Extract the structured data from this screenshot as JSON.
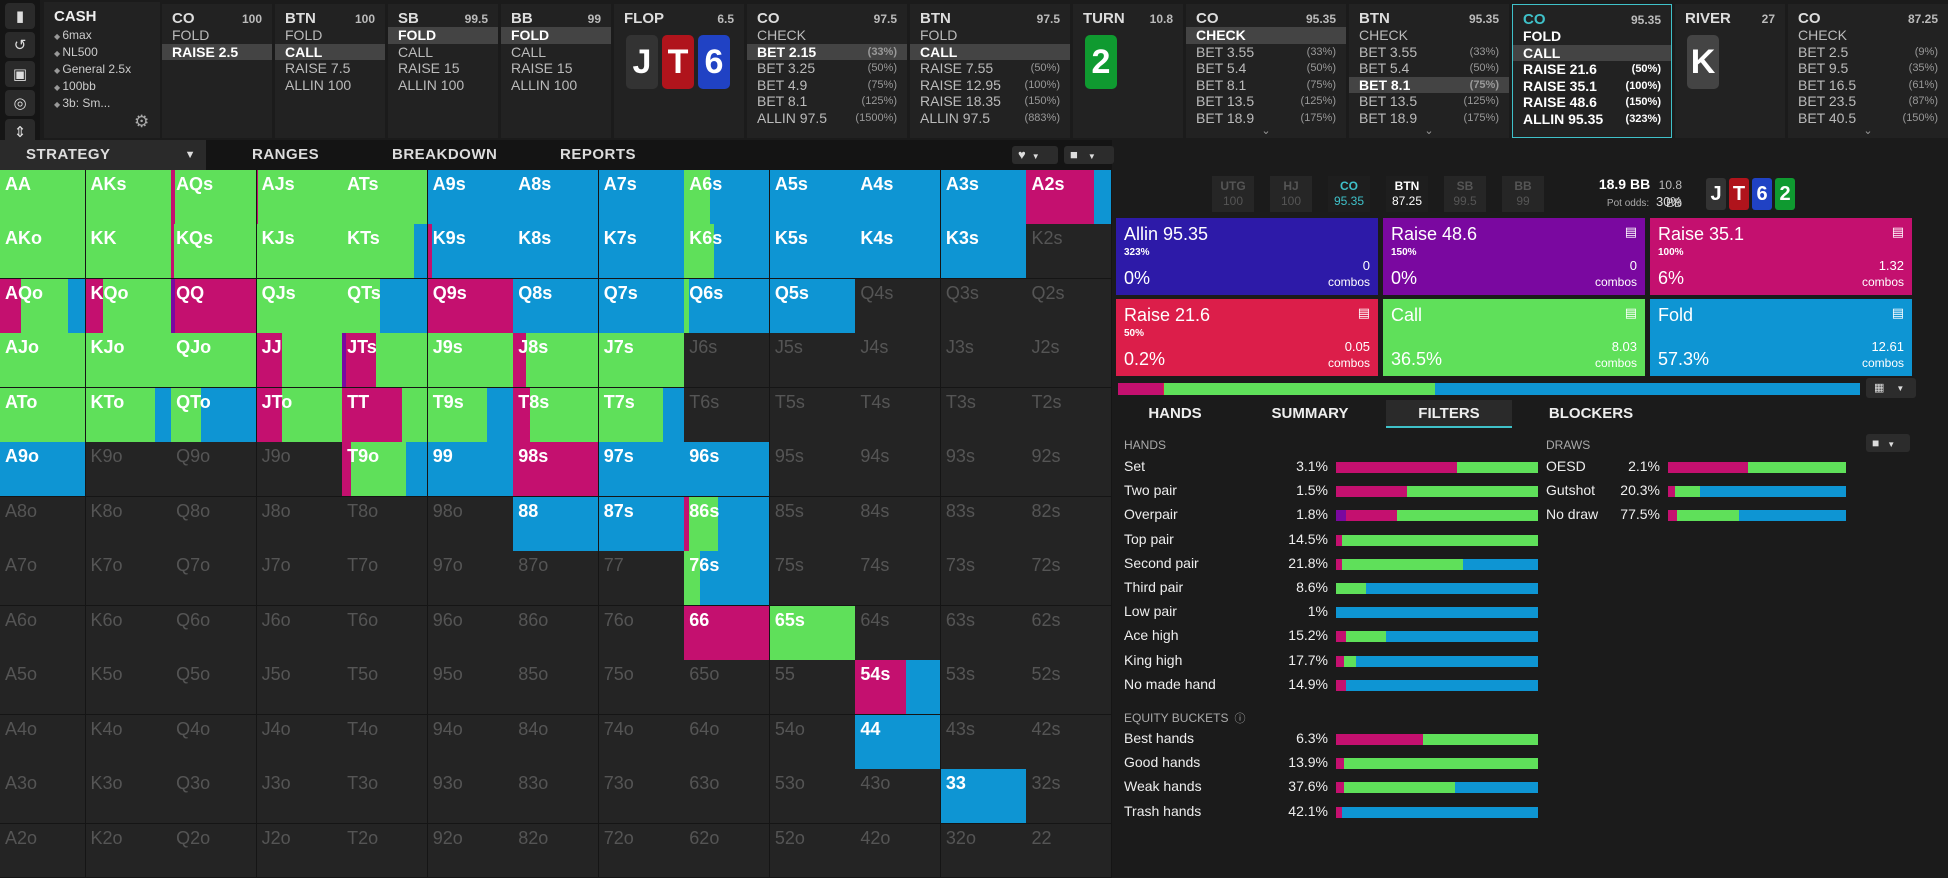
{
  "colors": {
    "fold": "#0e95d3",
    "call": "#5fe05a",
    "raise_small": "#dc1e4a",
    "raise_mid": "#c4106f",
    "raise_big": "#7a08a0",
    "allin": "#2d1aa8",
    "empty": "#242424",
    "accent": "#3fc1c9"
  },
  "sidebar": {
    "icons": [
      "bookmark-icon",
      "undo-icon",
      "save-icon",
      "gamepad-icon",
      "collapse-icon"
    ]
  },
  "cash": {
    "title": "CASH",
    "lines": [
      "6max",
      "NL500",
      "General 2.5x",
      "100bb",
      "3b: Sm..."
    ]
  },
  "nodes": [
    {
      "pos": "CO",
      "stack": "100",
      "actions": [
        {
          "l": "FOLD",
          "p": ""
        },
        {
          "l": "RAISE 2.5",
          "p": "",
          "sel": true
        }
      ]
    },
    {
      "pos": "BTN",
      "stack": "100",
      "actions": [
        {
          "l": "FOLD",
          "p": ""
        },
        {
          "l": "CALL",
          "p": "",
          "sel": true
        },
        {
          "l": "RAISE 7.5",
          "p": ""
        },
        {
          "l": "ALLIN 100",
          "p": ""
        }
      ]
    },
    {
      "pos": "SB",
      "stack": "99.5",
      "actions": [
        {
          "l": "FOLD",
          "p": "",
          "sel": true
        },
        {
          "l": "CALL",
          "p": ""
        },
        {
          "l": "RAISE 15",
          "p": ""
        },
        {
          "l": "ALLIN 100",
          "p": ""
        }
      ]
    },
    {
      "pos": "BB",
      "stack": "99",
      "actions": [
        {
          "l": "FOLD",
          "p": "",
          "sel": true
        },
        {
          "l": "CALL",
          "p": ""
        },
        {
          "l": "RAISE 15",
          "p": ""
        },
        {
          "l": "ALLIN 100",
          "p": ""
        }
      ]
    },
    {
      "street": "FLOP",
      "stack": "6.5",
      "cards": [
        {
          "r": "J",
          "c": "#333"
        },
        {
          "r": "T",
          "c": "#b0141c"
        },
        {
          "r": "6",
          "c": "#2042c4"
        }
      ]
    },
    {
      "pos": "CO",
      "stack": "97.5",
      "actions": [
        {
          "l": "CHECK",
          "p": ""
        },
        {
          "l": "BET 2.15",
          "p": "(33%)",
          "sel": true
        },
        {
          "l": "BET 3.25",
          "p": "(50%)"
        },
        {
          "l": "BET 4.9",
          "p": "(75%)"
        },
        {
          "l": "BET 8.1",
          "p": "(125%)"
        },
        {
          "l": "ALLIN 97.5",
          "p": "(1500%)"
        }
      ]
    },
    {
      "pos": "BTN",
      "stack": "97.5",
      "actions": [
        {
          "l": "FOLD",
          "p": ""
        },
        {
          "l": "CALL",
          "p": "",
          "sel": true
        },
        {
          "l": "RAISE 7.55",
          "p": "(50%)"
        },
        {
          "l": "RAISE 12.95",
          "p": "(100%)"
        },
        {
          "l": "RAISE 18.35",
          "p": "(150%)"
        },
        {
          "l": "ALLIN 97.5",
          "p": "(883%)"
        }
      ]
    },
    {
      "street": "TURN",
      "stack": "10.8",
      "cards": [
        {
          "r": "2",
          "c": "#0f9a30"
        }
      ]
    },
    {
      "pos": "CO",
      "stack": "95.35",
      "actions": [
        {
          "l": "CHECK",
          "p": "",
          "sel": true
        },
        {
          "l": "BET 3.55",
          "p": "(33%)"
        },
        {
          "l": "BET 5.4",
          "p": "(50%)"
        },
        {
          "l": "BET 8.1",
          "p": "(75%)"
        },
        {
          "l": "BET 13.5",
          "p": "(125%)"
        },
        {
          "l": "BET 18.9",
          "p": "(175%)"
        }
      ],
      "more": true
    },
    {
      "pos": "BTN",
      "stack": "95.35",
      "actions": [
        {
          "l": "CHECK",
          "p": ""
        },
        {
          "l": "BET 3.55",
          "p": "(33%)"
        },
        {
          "l": "BET 5.4",
          "p": "(50%)"
        },
        {
          "l": "BET 8.1",
          "p": "(75%)",
          "sel": true
        },
        {
          "l": "BET 13.5",
          "p": "(125%)"
        },
        {
          "l": "BET 18.9",
          "p": "(175%)"
        }
      ],
      "more": true
    },
    {
      "pos": "CO",
      "stack": "95.35",
      "active": true,
      "actions": [
        {
          "l": "FOLD",
          "p": ""
        },
        {
          "l": "CALL",
          "p": "",
          "sel": true
        },
        {
          "l": "RAISE 21.6",
          "p": "(50%)"
        },
        {
          "l": "RAISE 35.1",
          "p": "(100%)"
        },
        {
          "l": "RAISE 48.6",
          "p": "(150%)"
        },
        {
          "l": "ALLIN 95.35",
          "p": "(323%)"
        }
      ]
    },
    {
      "street": "RIVER",
      "stack": "27",
      "cards": [
        {
          "r": "K",
          "c": "#444"
        }
      ]
    },
    {
      "pos": "CO",
      "stack": "87.25",
      "actions": [
        {
          "l": "CHECK",
          "p": ""
        },
        {
          "l": "BET 2.5",
          "p": "(9%)"
        },
        {
          "l": "BET 9.5",
          "p": "(35%)"
        },
        {
          "l": "BET 16.5",
          "p": "(61%)"
        },
        {
          "l": "BET 23.5",
          "p": "(87%)"
        },
        {
          "l": "BET 40.5",
          "p": "(150%)"
        }
      ],
      "more": true
    }
  ],
  "tabs": [
    "STRATEGY",
    "RANGES",
    "BREAKDOWN",
    "REPORTS"
  ],
  "ranks": [
    "A",
    "K",
    "Q",
    "J",
    "T",
    "9",
    "8",
    "7",
    "6",
    "5",
    "4",
    "3",
    "2"
  ],
  "matrix": [
    [
      [
        0,
        0,
        0,
        100,
        0
      ],
      [
        0,
        0,
        0,
        100,
        0
      ],
      [
        0,
        0,
        5,
        95,
        0
      ],
      [
        0,
        0,
        2,
        98,
        0
      ],
      [
        0,
        0,
        0,
        100,
        0
      ],
      [
        0,
        0,
        0,
        0,
        100
      ],
      [
        0,
        0,
        0,
        0,
        100
      ],
      [
        0,
        0,
        0,
        0,
        100
      ],
      [
        0,
        0,
        0,
        30,
        70
      ],
      [
        0,
        0,
        0,
        0,
        100
      ],
      [
        0,
        0,
        0,
        0,
        100
      ],
      [
        0,
        0,
        0,
        0,
        100
      ],
      [
        0,
        0,
        80,
        0,
        20
      ]
    ],
    [
      [
        0,
        0,
        0,
        100,
        0
      ],
      [
        0,
        0,
        0,
        100,
        0
      ],
      [
        0,
        0,
        3,
        97,
        0
      ],
      [
        0,
        0,
        0,
        100,
        0
      ],
      [
        0,
        0,
        0,
        85,
        15
      ],
      [
        0,
        0,
        5,
        0,
        95
      ],
      [
        0,
        0,
        0,
        0,
        100
      ],
      [
        0,
        0,
        0,
        0,
        100
      ],
      [
        0,
        0,
        0,
        35,
        65
      ],
      [
        0,
        0,
        0,
        0,
        100
      ],
      [
        0,
        0,
        0,
        0,
        100
      ],
      [
        0,
        0,
        0,
        0,
        100
      ],
      null
    ],
    [
      [
        0,
        0,
        25,
        55,
        20
      ],
      [
        0,
        0,
        20,
        80,
        0
      ],
      [
        0,
        5,
        95,
        0,
        0
      ],
      [
        0,
        0,
        0,
        100,
        0
      ],
      [
        0,
        0,
        0,
        45,
        55
      ],
      [
        0,
        0,
        100,
        0,
        0
      ],
      [
        0,
        0,
        0,
        0,
        100
      ],
      [
        0,
        0,
        0,
        0,
        100
      ],
      [
        0,
        0,
        0,
        5,
        95
      ],
      [
        0,
        0,
        0,
        0,
        100
      ],
      null,
      null,
      null
    ],
    [
      [
        0,
        0,
        0,
        100,
        0
      ],
      [
        0,
        0,
        0,
        100,
        0
      ],
      [
        0,
        0,
        0,
        100,
        0
      ],
      [
        0,
        0,
        30,
        70,
        0
      ],
      [
        0,
        5,
        35,
        60,
        0
      ],
      [
        0,
        0,
        0,
        100,
        0
      ],
      [
        0,
        0,
        15,
        85,
        0
      ],
      [
        0,
        0,
        0,
        100,
        0
      ],
      null,
      null,
      null,
      null,
      null
    ],
    [
      [
        0,
        0,
        0,
        100,
        0
      ],
      [
        0,
        0,
        0,
        82,
        18
      ],
      [
        0,
        0,
        0,
        35,
        65
      ],
      [
        0,
        0,
        30,
        70,
        0
      ],
      [
        0,
        0,
        70,
        30,
        0
      ],
      [
        0,
        0,
        0,
        70,
        30
      ],
      [
        0,
        0,
        20,
        80,
        0
      ],
      [
        0,
        0,
        0,
        75,
        25
      ],
      null,
      null,
      null,
      null,
      null
    ],
    [
      [
        0,
        0,
        0,
        0,
        100
      ],
      null,
      null,
      null,
      [
        0,
        0,
        10,
        65,
        25
      ],
      [
        0,
        0,
        0,
        0,
        100
      ],
      [
        0,
        0,
        100,
        0,
        0
      ],
      [
        0,
        0,
        0,
        0,
        100
      ],
      [
        0,
        0,
        0,
        0,
        100
      ],
      null,
      null,
      null,
      null
    ],
    [
      null,
      null,
      null,
      null,
      null,
      null,
      [
        0,
        0,
        0,
        0,
        100
      ],
      [
        0,
        0,
        0,
        0,
        100
      ],
      [
        0,
        0,
        5,
        35,
        60
      ],
      null,
      null,
      null,
      null
    ],
    [
      null,
      null,
      null,
      null,
      null,
      null,
      null,
      null,
      [
        0,
        0,
        0,
        18,
        82
      ],
      null,
      null,
      null,
      null
    ],
    [
      null,
      null,
      null,
      null,
      null,
      null,
      null,
      null,
      [
        0,
        0,
        100,
        0,
        0
      ],
      [
        0,
        0,
        0,
        100,
        0
      ],
      null,
      null,
      null
    ],
    [
      null,
      null,
      null,
      null,
      null,
      null,
      null,
      null,
      null,
      null,
      [
        0,
        0,
        60,
        0,
        40
      ],
      null,
      null
    ],
    [
      null,
      null,
      null,
      null,
      null,
      null,
      null,
      null,
      null,
      null,
      [
        0,
        0,
        0,
        0,
        100
      ],
      null,
      null
    ],
    [
      null,
      null,
      null,
      null,
      null,
      null,
      null,
      null,
      null,
      null,
      null,
      [
        0,
        0,
        0,
        0,
        100
      ],
      null
    ],
    [
      null,
      null,
      null,
      null,
      null,
      null,
      null,
      null,
      null,
      null,
      null,
      null,
      null
    ]
  ],
  "positions": [
    {
      "n": "UTG",
      "s": "100"
    },
    {
      "n": "HJ",
      "s": "100"
    },
    {
      "n": "CO",
      "s": "95.35",
      "hl": "teal"
    },
    {
      "n": "BTN",
      "s": "87.25",
      "hl": "white"
    },
    {
      "n": "SB",
      "s": "99.5"
    },
    {
      "n": "BB",
      "s": "99"
    }
  ],
  "pot": {
    "bb": "18.9 BB",
    "bb2": "10.8 BB",
    "odds_label": "Pot odds:",
    "odds": "30%"
  },
  "board": [
    {
      "r": "J",
      "c": "#333"
    },
    {
      "r": "T",
      "c": "#b0141c"
    },
    {
      "r": "6",
      "c": "#2042c4"
    },
    {
      "r": "2",
      "c": "#0f9a30"
    }
  ],
  "actions": [
    {
      "name": "Allin 95.35",
      "sub": "323%",
      "pct": "0%",
      "combos": "0",
      "cl": "combos",
      "color": "#2d1aa8",
      "icon": false
    },
    {
      "name": "Raise 48.6",
      "sub": "150%",
      "pct": "0%",
      "combos": "0",
      "cl": "combos",
      "color": "#7a08a0",
      "icon": true
    },
    {
      "name": "Raise 35.1",
      "sub": "100%",
      "pct": "6%",
      "combos": "1.32",
      "cl": "combos",
      "color": "#c4106f",
      "icon": true
    },
    {
      "name": "Raise 21.6",
      "sub": "50%",
      "pct": "0.2%",
      "combos": "0.05",
      "cl": "combos",
      "color": "#dc1e4a",
      "icon": true
    },
    {
      "name": "Call",
      "sub": "",
      "pct": "36.5%",
      "combos": "8.03",
      "cl": "combos",
      "color": "#5fe05a",
      "icon": true
    },
    {
      "name": "Fold",
      "sub": "",
      "pct": "57.3%",
      "combos": "12.61",
      "cl": "combos",
      "color": "#0e95d3",
      "icon": true
    }
  ],
  "summary_bar": [
    0,
    0,
    6,
    0.2,
    36.5,
    57.3
  ],
  "subtabs": [
    "HANDS",
    "SUMMARY",
    "FILTERS",
    "BLOCKERS"
  ],
  "hands_title": "HANDS",
  "hands": [
    {
      "l": "Set",
      "v": "3.1%",
      "m": [
        0,
        0,
        60,
        40,
        0
      ]
    },
    {
      "l": "Two pair",
      "v": "1.5%",
      "m": [
        0,
        0,
        35,
        65,
        0
      ]
    },
    {
      "l": "Overpair",
      "v": "1.8%",
      "m": [
        0,
        5,
        25,
        70,
        0
      ]
    },
    {
      "l": "Top pair",
      "v": "14.5%",
      "m": [
        0,
        0,
        3,
        97,
        0
      ]
    },
    {
      "l": "Second pair",
      "v": "21.8%",
      "m": [
        0,
        0,
        3,
        60,
        37
      ]
    },
    {
      "l": "Third pair",
      "v": "8.6%",
      "m": [
        0,
        0,
        0,
        15,
        85
      ]
    },
    {
      "l": "Low pair",
      "v": "1%",
      "m": [
        0,
        0,
        0,
        0,
        100
      ]
    },
    {
      "l": "Ace high",
      "v": "15.2%",
      "m": [
        0,
        0,
        5,
        20,
        75
      ]
    },
    {
      "l": "King high",
      "v": "17.7%",
      "m": [
        0,
        0,
        4,
        6,
        90
      ]
    },
    {
      "l": "No made hand",
      "v": "14.9%",
      "m": [
        0,
        0,
        5,
        0,
        95
      ]
    }
  ],
  "equity_title": "EQUITY BUCKETS",
  "equity": [
    {
      "l": "Best hands",
      "v": "6.3%",
      "m": [
        0,
        0,
        43,
        57,
        0
      ]
    },
    {
      "l": "Good hands",
      "v": "13.9%",
      "m": [
        0,
        0,
        4,
        96,
        0
      ]
    },
    {
      "l": "Weak hands",
      "v": "37.6%",
      "m": [
        0,
        0,
        4,
        55,
        41
      ]
    },
    {
      "l": "Trash hands",
      "v": "42.1%",
      "m": [
        0,
        0,
        3,
        0,
        97
      ]
    }
  ],
  "draws_title": "DRAWS",
  "draws": [
    {
      "l": "OESD",
      "v": "2.1%",
      "m": [
        0,
        0,
        45,
        55,
        0
      ]
    },
    {
      "l": "Gutshot",
      "v": "20.3%",
      "m": [
        0,
        0,
        4,
        14,
        82
      ]
    },
    {
      "l": "No draw",
      "v": "77.5%",
      "m": [
        0,
        0,
        5,
        35,
        60
      ]
    }
  ]
}
